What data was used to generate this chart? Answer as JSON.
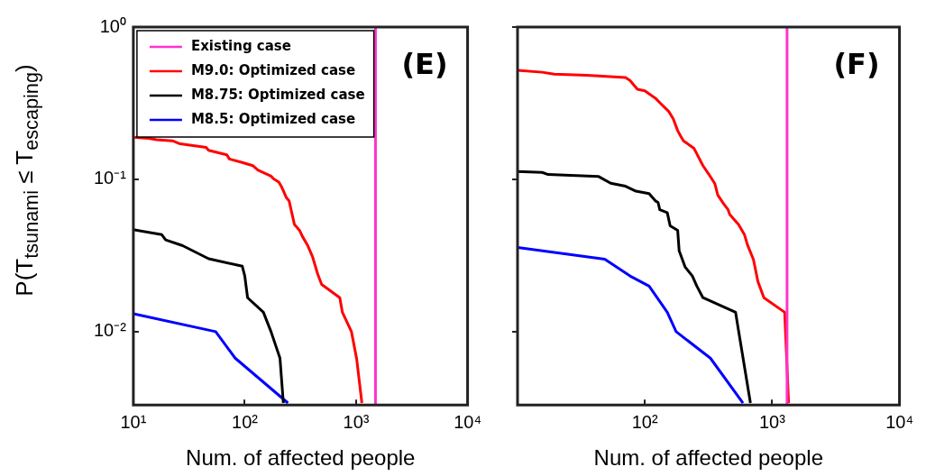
{
  "chart_data": [
    {
      "type": "line",
      "xlabel": "Num. of affected people",
      "ylabel": "P(T$_{tsunami}$ ≤ T$_{escaping}$)",
      "annotations": [
        "(E)"
      ],
      "log": "xy",
      "legend": "top left",
      "xlim": [
        10,
        10000
      ],
      "xticks": [
        {
          "value": 10,
          "label": "10¹"
        },
        {
          "value": 100,
          "label": "10²"
        },
        {
          "value": 1000,
          "label": "10³"
        },
        {
          "value": 10000,
          "label": "10⁴"
        }
      ],
      "ylim": [
        0.0033,
        1
      ],
      "yticks": [
        {
          "value": 0.01,
          "label": "10⁻²"
        },
        {
          "value": 0.1,
          "label": "10⁻¹"
        },
        {
          "value": 1,
          "label": "10⁰"
        }
      ],
      "series": [
        {
          "name": "Existing case",
          "color": "#ff33cc",
          "x": [
            1490,
            1490
          ],
          "values": [
            0.0033,
            1
          ]
        },
        {
          "name": "M9.0: Optimized case",
          "color": "#ff0000",
          "x": [
            10,
            13.8,
            16.2,
            22.4,
            26.3,
            45,
            47.4,
            69,
            72.8,
            95,
            118,
            131,
            172,
            181,
            202,
            213,
            237,
            250,
            264,
            279,
            310,
            328,
            365,
            406,
            452,
            490,
            713,
            752,
            907,
            1011,
            1125
          ],
          "values": [
            0.189,
            0.186,
            0.182,
            0.179,
            0.171,
            0.162,
            0.155,
            0.145,
            0.136,
            0.129,
            0.123,
            0.115,
            0.105,
            0.101,
            0.096,
            0.09,
            0.0755,
            0.0722,
            0.0604,
            0.0506,
            0.0463,
            0.0424,
            0.0371,
            0.031,
            0.0238,
            0.0204,
            0.0167,
            0.0134,
            0.01,
            0.0066,
            0.0034
          ]
        },
        {
          "name": "M8.75: Optimized case",
          "color": "#000000",
          "x": [
            10,
            18,
            19.5,
            27.7,
            47.4,
            95,
            100,
            106,
            147,
            172,
            207,
            222
          ],
          "values": [
            0.0467,
            0.0433,
            0.04,
            0.0367,
            0.0301,
            0.0269,
            0.0232,
            0.0167,
            0.0134,
            0.01,
            0.0067,
            0.0034
          ]
        },
        {
          "name": "M8.5: Optimized case",
          "color": "#0000ff",
          "x": [
            10,
            54.8,
            82,
            244
          ],
          "values": [
            0.0131,
            0.01,
            0.0067,
            0.0034
          ]
        }
      ]
    },
    {
      "type": "line",
      "xlabel": "Num. of affected people",
      "annotations": [
        "(F)"
      ],
      "log": "xy",
      "tick_labels": "x",
      "xlim": [
        10,
        10000
      ],
      "xticks": [
        {
          "value": 100,
          "label": "10²"
        },
        {
          "value": 1000,
          "label": "10³"
        },
        {
          "value": 10000,
          "label": "10⁴"
        }
      ],
      "ylim": [
        0.0033,
        1
      ],
      "yticks": [
        {
          "value": 0.01,
          "label": null
        },
        {
          "value": 0.1,
          "label": null
        },
        {
          "value": 1,
          "label": null
        }
      ],
      "series": [
        {
          "color": "#ff33cc",
          "x": [
            1309,
            1309
          ],
          "values": [
            0.0033,
            1
          ]
        },
        {
          "color": "#ff0000",
          "x": [
            10,
            15.6,
            19.4,
            35,
            70.5,
            76.4,
            87.4,
            100,
            121,
            134,
            154,
            167,
            181,
            191,
            201,
            243,
            256,
            286,
            318,
            354,
            374,
            416,
            451,
            463,
            544,
            606,
            640,
            713,
            773,
            861,
            1254,
            1346
          ],
          "values": [
            0.52,
            0.505,
            0.491,
            0.483,
            0.466,
            0.446,
            0.39,
            0.381,
            0.341,
            0.313,
            0.279,
            0.25,
            0.209,
            0.192,
            0.179,
            0.16,
            0.147,
            0.123,
            0.108,
            0.094,
            0.0789,
            0.069,
            0.0631,
            0.059,
            0.0506,
            0.0433,
            0.0371,
            0.0297,
            0.0213,
            0.0167,
            0.0134,
            0.0034
          ]
        },
        {
          "color": "#000000",
          "x": [
            10,
            15.6,
            17.4,
            43.4,
            53.9,
            70.5,
            85.1,
            108,
            121,
            127,
            131,
            150,
            158,
            181,
            186,
            207,
            236,
            256,
            286,
            516,
            544,
            675
          ],
          "values": [
            0.1125,
            0.111,
            0.1076,
            0.1043,
            0.0942,
            0.0901,
            0.0836,
            0.0806,
            0.0722,
            0.0706,
            0.0631,
            0.0604,
            0.0495,
            0.0463,
            0.0339,
            0.0266,
            0.0232,
            0.0199,
            0.0167,
            0.0134,
            0.0102,
            0.0034
          ]
        },
        {
          "color": "#0000ff",
          "x": [
            10,
            48.4,
            76.4,
            108,
            150,
            176,
            327,
            590
          ],
          "values": [
            0.0357,
            0.0299,
            0.0232,
            0.0199,
            0.0134,
            0.01,
            0.0067,
            0.0034
          ]
        }
      ]
    }
  ]
}
